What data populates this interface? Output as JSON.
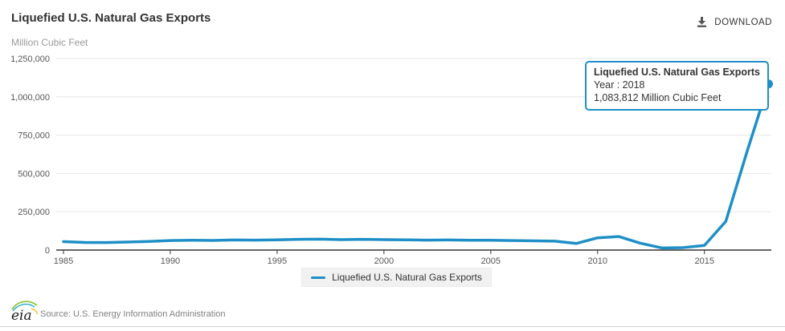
{
  "header": {
    "title": "Liquefied U.S. Natural Gas Exports",
    "unit": "Million Cubic Feet",
    "download_label": "DOWNLOAD"
  },
  "tooltip": {
    "title": "Liquefied U.S. Natural Gas Exports",
    "year_line": "Year : 2018",
    "value_line": "1,083,812 Million Cubic Feet"
  },
  "legend": {
    "label": "Liquefied U.S. Natural Gas Exports"
  },
  "footer": {
    "logo_text": "eia",
    "source": "Source: U.S. Energy Information Administration"
  },
  "colors": {
    "series": "#1e8fc6",
    "tooltip_border": "#1e8fc6",
    "grid": "#e6e6e6",
    "axis": "#333333",
    "tick_label": "#555555",
    "legend_bg": "#f1f1f1"
  },
  "chart_data": {
    "type": "line",
    "title": "Liquefied U.S. Natural Gas Exports",
    "ylabel": "Million Cubic Feet",
    "xlabel": "",
    "x": [
      1985,
      1986,
      1987,
      1988,
      1989,
      1990,
      1991,
      1992,
      1993,
      1994,
      1995,
      1996,
      1997,
      1998,
      1999,
      2000,
      2001,
      2002,
      2003,
      2004,
      2005,
      2006,
      2007,
      2008,
      2009,
      2010,
      2011,
      2012,
      2013,
      2014,
      2015,
      2016,
      2017,
      2018
    ],
    "values": [
      55000,
      50000,
      49000,
      52000,
      56000,
      62000,
      64000,
      63000,
      66000,
      65000,
      67000,
      70000,
      71000,
      68000,
      70000,
      68000,
      67000,
      65000,
      66000,
      64000,
      64000,
      62000,
      60000,
      58000,
      43000,
      80000,
      88000,
      45000,
      14000,
      16000,
      30000,
      187000,
      645000,
      1083812
    ],
    "ylim": [
      0,
      1250000
    ],
    "y_ticks": [
      0,
      250000,
      500000,
      750000,
      1000000,
      1250000
    ],
    "y_tick_labels": [
      "0",
      "250,000",
      "500,000",
      "750,000",
      "1,000,000",
      "1,250,000"
    ],
    "x_ticks": [
      1985,
      1990,
      1995,
      2000,
      2005,
      2010,
      2015
    ],
    "x_tick_labels": [
      "1985",
      "1990",
      "1995",
      "2000",
      "2005",
      "2010",
      "2015"
    ],
    "grid": "horizontal",
    "legend_entries": [
      "Liquefied U.S. Natural Gas Exports"
    ],
    "legend_position": "bottom",
    "highlight": {
      "year": 2018,
      "value": 1083812
    }
  }
}
